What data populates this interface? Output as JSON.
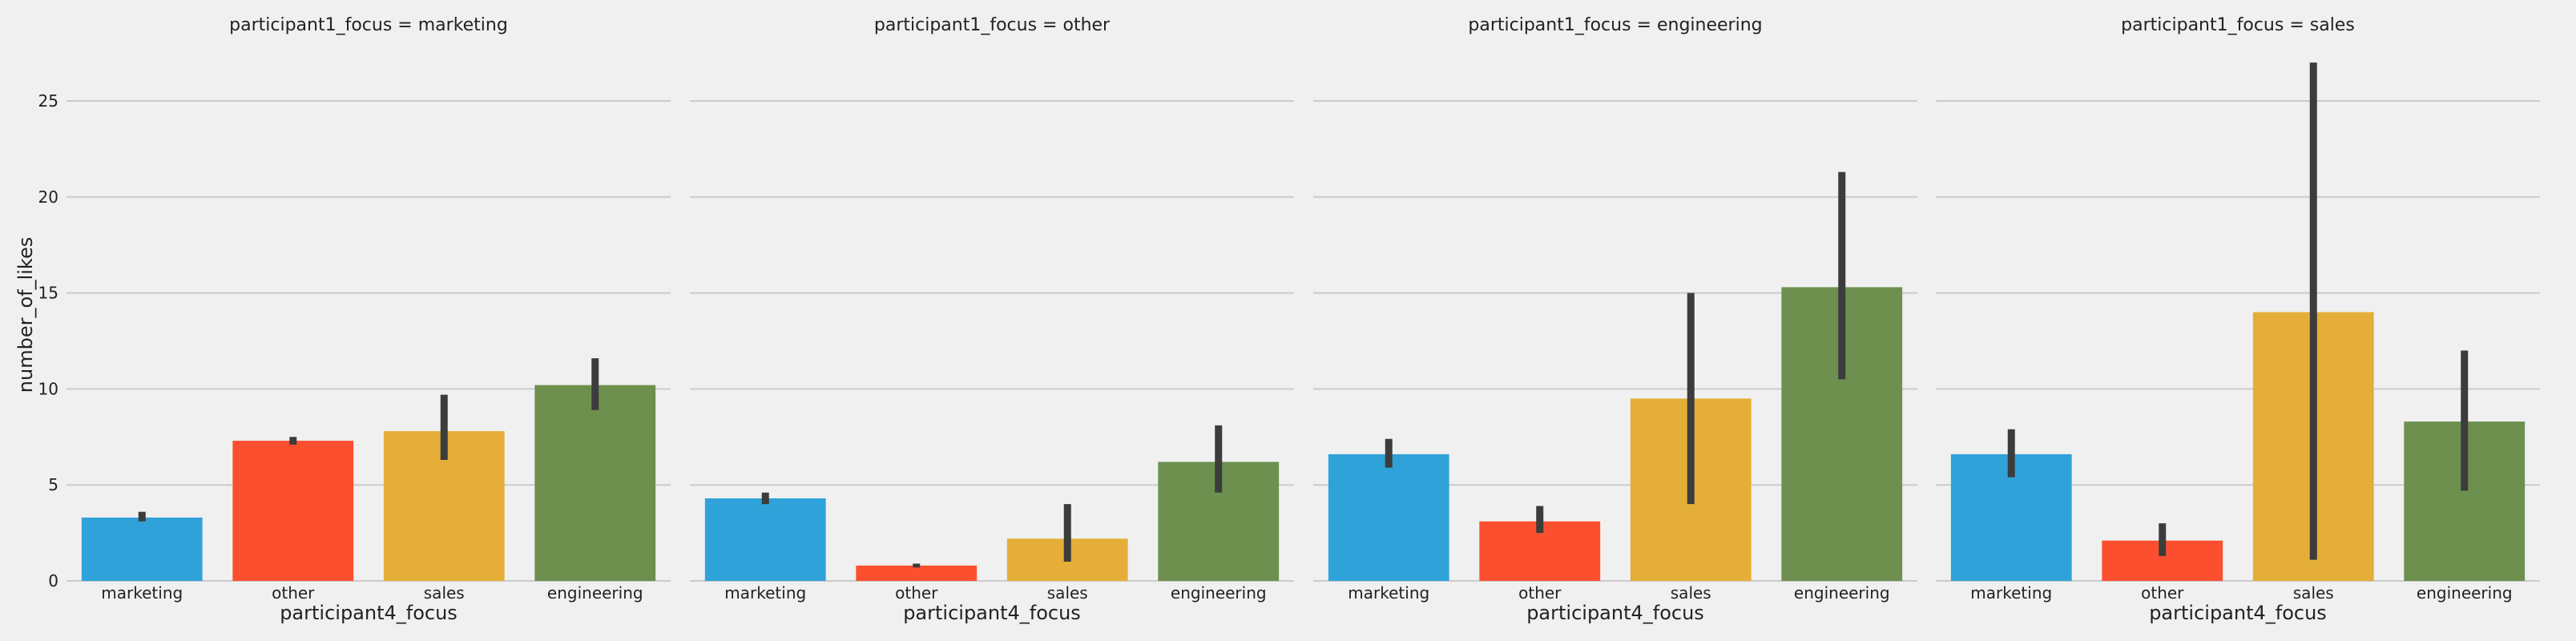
{
  "chart_data": {
    "type": "bar",
    "layout": "faceted, 4 columns, shared y axis",
    "panel_title_prefix": "participant1_focus = ",
    "panels": [
      "marketing",
      "other",
      "engineering",
      "sales"
    ],
    "categories": [
      "marketing",
      "other",
      "sales",
      "engineering"
    ],
    "xlabel": "participant4_focus",
    "ylabel": "number_of_likes",
    "ylim": [
      0,
      28
    ],
    "yticks": [
      0,
      5,
      10,
      15,
      20,
      25
    ],
    "grid": "horizontal",
    "colors": {
      "marketing": "#30a2da",
      "other": "#fc4f30",
      "sales": "#e5ae38",
      "engineering": "#6d904f",
      "error_bar": "#3c3c3c",
      "background": "#f0f0f0",
      "grid": "#cbcbcb"
    },
    "series": [
      {
        "panel": "marketing",
        "values": [
          3.3,
          7.3,
          7.8,
          10.2
        ],
        "error_low": [
          3.1,
          7.1,
          6.3,
          8.9
        ],
        "error_high": [
          3.6,
          7.5,
          9.7,
          11.6
        ]
      },
      {
        "panel": "other",
        "values": [
          4.3,
          0.8,
          2.2,
          6.2
        ],
        "error_low": [
          4.0,
          0.7,
          1.0,
          4.6
        ],
        "error_high": [
          4.6,
          0.9,
          4.0,
          8.1
        ]
      },
      {
        "panel": "engineering",
        "values": [
          6.6,
          3.1,
          9.5,
          15.3
        ],
        "error_low": [
          5.9,
          2.5,
          4.0,
          10.5
        ],
        "error_high": [
          7.4,
          3.9,
          15.0,
          21.3
        ]
      },
      {
        "panel": "sales",
        "values": [
          6.6,
          2.1,
          14.0,
          8.3
        ],
        "error_low": [
          5.4,
          1.3,
          1.1,
          4.7
        ],
        "error_high": [
          7.9,
          3.0,
          27.0,
          12.0
        ]
      }
    ]
  }
}
